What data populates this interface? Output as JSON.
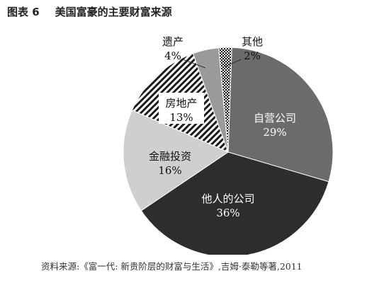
{
  "figure": {
    "number": "图表 6",
    "title": "美国富豪的主要财富来源",
    "source": "资料来源:《富一代: 新贵阶层的财富与生活》,吉姆·泰勒等著,2011"
  },
  "chart_data": {
    "type": "pie",
    "title": "美国富豪的主要财富来源",
    "unit": "%",
    "slices": [
      {
        "label": "自营公司",
        "value": 29,
        "value_label": "29%",
        "fill": "#6b6b6b",
        "text_color": "#ffffff"
      },
      {
        "label": "他人的公司",
        "value": 36,
        "value_label": "36%",
        "fill": "#2d2d2d",
        "text_color": "#ffffff"
      },
      {
        "label": "金融投资",
        "value": 16,
        "value_label": "16%",
        "fill": "#cfcfcf",
        "text_color": "#111111"
      },
      {
        "label": "房地产",
        "value": 13,
        "value_label": "13%",
        "fill": "hatch",
        "text_color": "#111111"
      },
      {
        "label": "遗产",
        "value": 4,
        "value_label": "4%",
        "fill": "#9a9a9a",
        "text_color": "#111111"
      },
      {
        "label": "其他",
        "value": 2,
        "value_label": "2%",
        "fill": "checker",
        "text_color": "#111111"
      }
    ],
    "start_angle_deg": 2,
    "direction": "clockwise"
  }
}
